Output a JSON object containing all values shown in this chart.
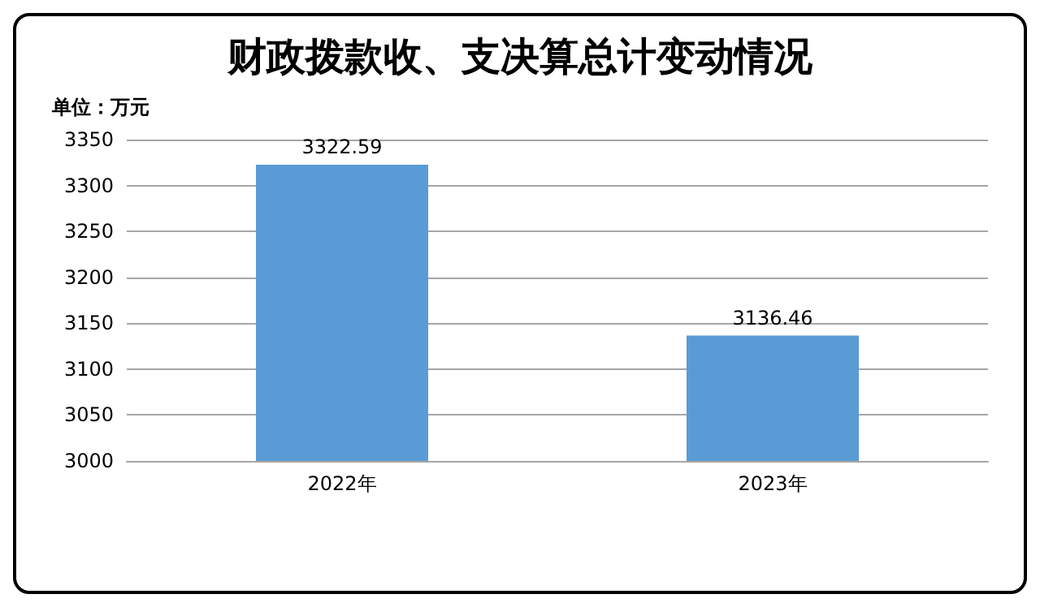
{
  "chart_data": {
    "type": "bar",
    "title": "财政拨款收、支决算总计变动情况",
    "annotations": [
      "单位：万元"
    ],
    "categories": [
      "2022年",
      "2023年"
    ],
    "values": [
      3322.59,
      3136.46
    ],
    "color": "#5b9bd5",
    "ylim": [
      3000,
      3350
    ],
    "yticks": [
      3000,
      3050,
      3100,
      3150,
      3200,
      3250,
      3300,
      3350
    ],
    "grid": "y",
    "data_labels": true
  }
}
